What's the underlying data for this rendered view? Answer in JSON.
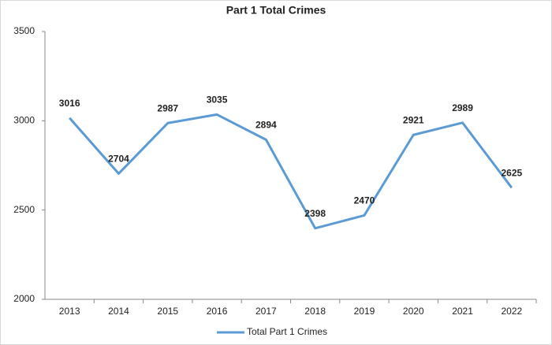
{
  "chart_data": {
    "type": "line",
    "title": "Part 1 Total Crimes",
    "categories": [
      "2013",
      "2014",
      "2015",
      "2016",
      "2017",
      "2018",
      "2019",
      "2020",
      "2021",
      "2022"
    ],
    "series": [
      {
        "name": "Total Part 1 Crimes",
        "color": "#5b9bd5",
        "values": [
          3016,
          2704,
          2987,
          3035,
          2894,
          2398,
          2470,
          2921,
          2989,
          2625
        ]
      }
    ],
    "ylim": [
      2000,
      3500
    ],
    "yticks": [
      2000,
      2500,
      3000,
      3500
    ],
    "grid": false,
    "legend": "bottom"
  }
}
